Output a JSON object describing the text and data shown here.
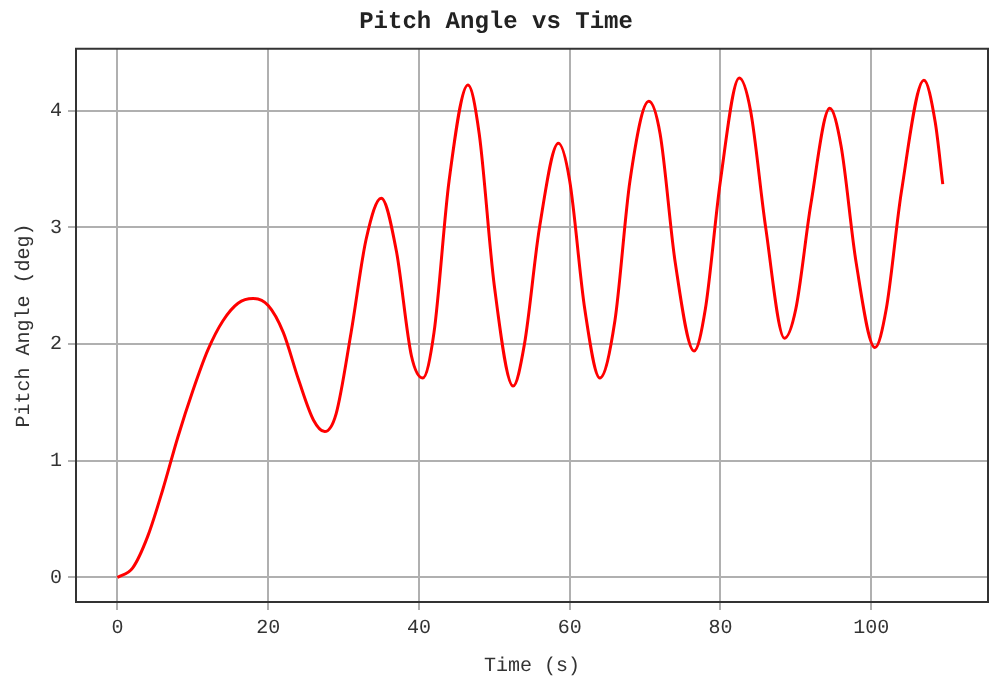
{
  "chart_data": {
    "type": "line",
    "title": "Pitch Angle vs Time",
    "xlabel": "Time (s)",
    "ylabel": "Pitch Angle (deg)",
    "xlim": [
      -5.5,
      115.5
    ],
    "ylim": [
      -0.21,
      4.53
    ],
    "xticks": [
      0,
      20,
      40,
      60,
      80,
      100
    ],
    "yticks": [
      0,
      1,
      2,
      3,
      4
    ],
    "grid": true,
    "marker": "none",
    "line_style": "solid",
    "series": [
      {
        "color": "#ff0000",
        "x": [
          0,
          2,
          4,
          6,
          8,
          10,
          12,
          14,
          16,
          18,
          20,
          22,
          24,
          26,
          27.5,
          29,
          31,
          33,
          35,
          37,
          39,
          40.5,
          42,
          44,
          46.5,
          48,
          50,
          52.5,
          54,
          56,
          58.5,
          60,
          62,
          64,
          66,
          68,
          70.5,
          72,
          74,
          76.5,
          78,
          80,
          82.5,
          84,
          86,
          88.5,
          90,
          92,
          94.5,
          96,
          98,
          100.5,
          102,
          104,
          107,
          108.5,
          109.5
        ],
        "values": [
          0,
          0.08,
          0.35,
          0.75,
          1.2,
          1.6,
          1.95,
          2.2,
          2.35,
          2.39,
          2.33,
          2.1,
          1.7,
          1.35,
          1.25,
          1.4,
          2.1,
          2.9,
          3.25,
          2.8,
          1.9,
          1.71,
          2.1,
          3.4,
          4.22,
          3.8,
          2.5,
          1.64,
          2.0,
          3.0,
          3.72,
          3.4,
          2.3,
          1.71,
          2.2,
          3.4,
          4.08,
          3.8,
          2.7,
          1.94,
          2.3,
          3.4,
          4.28,
          4.0,
          3.0,
          2.05,
          2.3,
          3.2,
          4.02,
          3.7,
          2.7,
          1.97,
          2.3,
          3.3,
          4.26,
          3.9,
          3.37
        ]
      }
    ]
  }
}
